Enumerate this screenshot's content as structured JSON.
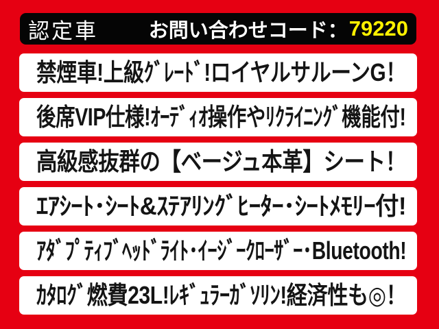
{
  "colors": {
    "background": "#e60012",
    "bar_background": "#050505",
    "box_background": "#ffffff",
    "bar_text": "#ffffff",
    "code_text": "#fff100",
    "row_text": "#141414"
  },
  "header": {
    "badge": "認定車",
    "inquiry_label": "お問い合わせコード：",
    "inquiry_code": "79220"
  },
  "rows": [
    {
      "text": "禁煙車!上級ｸﾞﾚｰﾄﾞ!ロイヤルサルーンG！"
    },
    {
      "text": "後席VIP仕様!ｵｰﾃﾞｨｵ操作やﾘｸﾗｲﾆﾝｸﾞ機能付!"
    },
    {
      "text": "高級感抜群の【ベージュ本革】シート！"
    },
    {
      "text": "ｴｱｼｰﾄ･ｼｰﾄ&ｽﾃｱﾘﾝｸﾞﾋｰﾀｰ･ｼｰﾄﾒﾓﾘｰ付!"
    },
    {
      "text": "ｱﾀﾞﾌﾟﾃｨﾌﾞﾍｯﾄﾞﾗｲﾄ･ｲｰｼﾞｰｸﾛｰｻﾞｰ･Bluetooth!"
    },
    {
      "text": "ｶﾀﾛｸﾞ燃費23L!ﾚｷﾞｭﾗｰｶﾞｿﾘﾝ!経済性も◎！"
    }
  ]
}
